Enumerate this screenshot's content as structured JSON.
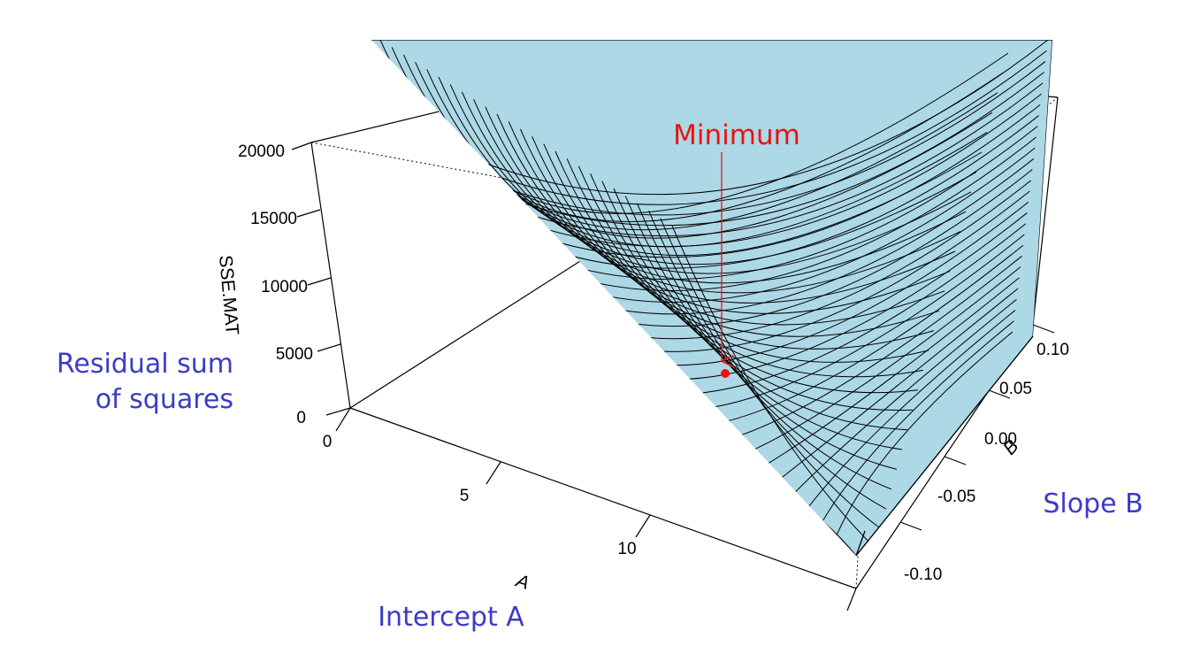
{
  "chart_data": {
    "type": "surface",
    "title": "",
    "axes": {
      "x": {
        "label": "A",
        "ticks": [
          "0",
          "5",
          "10"
        ]
      },
      "y": {
        "label": "B",
        "ticks": [
          "-0.10",
          "-0.05",
          "0.00",
          "0.05",
          "0.10"
        ]
      },
      "z": {
        "label": "SSE.MAT",
        "ticks": [
          "0",
          "5000",
          "10000",
          "15000",
          "20000"
        ]
      }
    },
    "surface_color": "#add8e6",
    "mesh_color": "#000000",
    "minimum_point": {
      "color": "#ee1111"
    },
    "annotations": {
      "minimum": "Minimum",
      "z_note_line1": "Residual sum",
      "z_note_line2": "of squares",
      "x_note": "Intercept A",
      "y_note": "Slope B"
    },
    "annotation_colors": {
      "blue": "#3b3bc7",
      "red": "#ee1111"
    }
  }
}
